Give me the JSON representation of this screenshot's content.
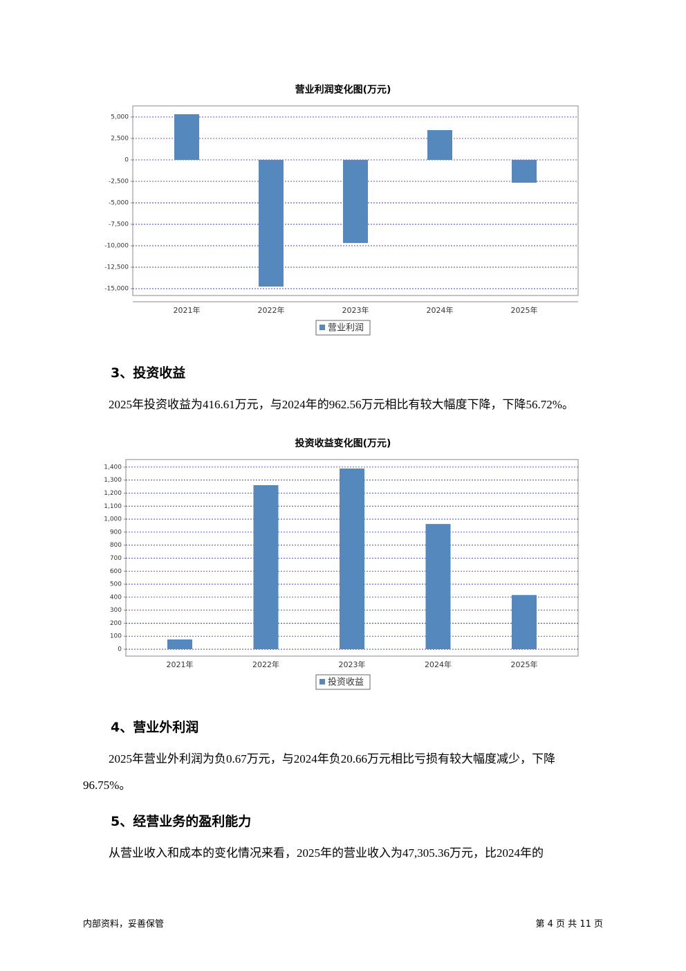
{
  "chart_data": [
    {
      "type": "bar",
      "title": "营业利润变化图(万元)",
      "categories": [
        "2021年",
        "2022年",
        "2023年",
        "2024年",
        "2025年"
      ],
      "series": [
        {
          "name": "营业利润",
          "color": "#5589bd",
          "values": [
            5320,
            -14760,
            -9680,
            3470,
            -2660
          ]
        }
      ],
      "ylim": [
        -15800,
        6290
      ],
      "yticks": [
        {
          "value": 5000,
          "label": "5,000"
        },
        {
          "value": 2500,
          "label": "2,500"
        },
        0,
        {
          "value": -2500,
          "label": "-2,500"
        },
        {
          "value": -5000,
          "label": "-5,000"
        },
        {
          "value": -7500,
          "label": "-7,500"
        },
        {
          "value": -10000,
          "label": "-10,000"
        },
        {
          "value": -12500,
          "label": "-12,500"
        },
        {
          "value": -15000,
          "label": "-15,000"
        }
      ],
      "grid": true
    },
    {
      "type": "bar",
      "title": "投资收益变化图(万元)",
      "categories": [
        "2021年",
        "2022年",
        "2023年",
        "2024年",
        "2025年"
      ],
      "series": [
        {
          "name": "投资收益",
          "color": "#5589bd",
          "values": [
            75,
            1261,
            1389,
            962.56,
            416.61
          ]
        }
      ],
      "ylim": [
        -53,
        1458
      ],
      "yticks": [
        {
          "value": 1400,
          "label": "1,400"
        },
        {
          "value": 1300,
          "label": "1,300"
        },
        {
          "value": 1200,
          "label": "1,200"
        },
        {
          "value": 1100,
          "label": "1,100"
        },
        {
          "value": 1000,
          "label": "1,000"
        },
        900,
        800,
        700,
        600,
        500,
        400,
        300,
        200,
        100,
        0
      ],
      "grid": true
    }
  ],
  "sections": [
    {
      "heading": "3、投资收益",
      "text": "2025年投资收益为416.61万元，与2024年的962.56万元相比有较大幅度下降，下降56.72%。"
    },
    {
      "heading": "4、营业外利润",
      "text": "2025年营业外利润为负0.67万元，与2024年负20.66万元相比亏损有较大幅度减少，下降96.75%。"
    },
    {
      "heading": "5、经营业务的盈利能力",
      "text": "从营业收入和成本的变化情况来看，2025年的营业收入为47,305.36万元，比2024年的"
    }
  ],
  "footer": {
    "left": "内部资料，妥善保管",
    "right": "第 4 页 共 11 页"
  }
}
